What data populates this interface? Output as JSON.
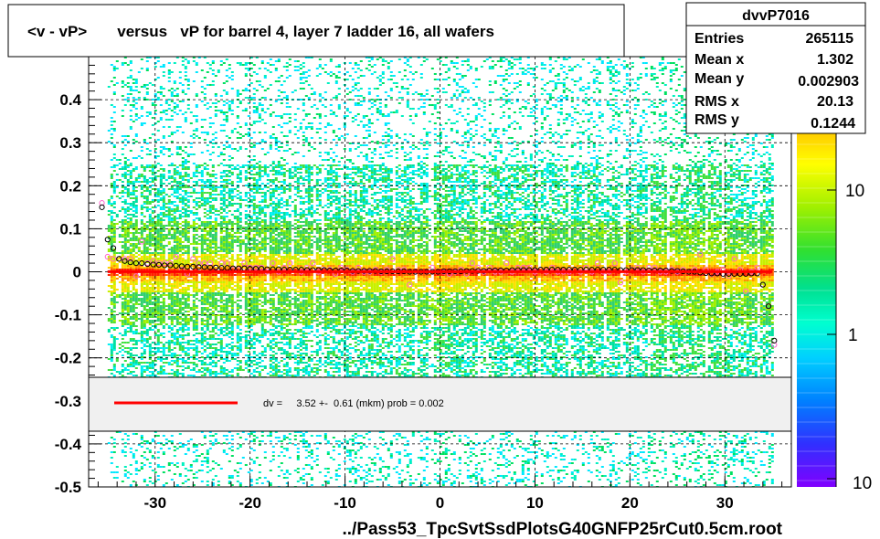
{
  "title": "<v - vP>       versus   vP for barrel 4, layer 7 ladder 16, all wafers",
  "footer": "../Pass53_TpcSvtSsdPlotsG40GNFP25rCut0.5cm.root",
  "stats": {
    "name": "dvvP7016",
    "rows": [
      {
        "label": "Entries",
        "value": "265115"
      },
      {
        "label": "Mean x",
        "value": "1.302"
      },
      {
        "label": "Mean y",
        "value": "0.002903"
      },
      {
        "label": "RMS x",
        "value": "20.13"
      },
      {
        "label": "RMS y",
        "value": "0.1244"
      }
    ]
  },
  "fit_legend": "dv =     3.52 +-  0.61 (mkm) prob = 0.002",
  "colors": {
    "fit_line": "#ff0000",
    "frame": "#000000",
    "legend_bg": "#f0f0f0",
    "profile_marker_light": "#ff66cc",
    "profile_marker_dark": "#000000"
  },
  "chart_data": {
    "type": "heatmap",
    "title": "<v - vP>       versus   vP for barrel 4, layer 7 ladder 16, all wafers",
    "xlabel": "../Pass53_TpcSvtSsdPlotsG40GNFP25rCut0.5cm.root",
    "ylabel": "",
    "xlim": [
      -37,
      37
    ],
    "ylim": [
      -0.5,
      0.5
    ],
    "x_ticks": [
      -30,
      -20,
      -10,
      0,
      10,
      20,
      30
    ],
    "y_ticks": [
      -0.5,
      -0.4,
      -0.3,
      -0.2,
      -0.1,
      0,
      0.1,
      0.2,
      0.3,
      0.4
    ],
    "y_tick_labels": [
      "-0.5",
      "-0.4",
      "-0.3",
      "-0.2",
      "-0.1",
      "0",
      "0.1",
      "0.2",
      "0.3",
      "0.4"
    ],
    "grid": true,
    "data_x_range": [
      -35,
      35
    ],
    "band_center_y": 0.0,
    "colorbar": {
      "scale": "log",
      "tick_labels": [
        "1",
        "10"
      ],
      "corner_label": "10"
    },
    "fit": {
      "type": "pol0",
      "value_mkm": 3.52,
      "error_mkm": 0.61,
      "prob": 0.002,
      "x_range": [
        -35,
        35
      ]
    },
    "profile": {
      "x": [
        -35.6,
        -35.0,
        -34.4,
        -33.8,
        -33.2,
        -32.6,
        -32.0,
        -31.4,
        -30.8,
        -30.2,
        -29.6,
        -29.0,
        -28.4,
        -27.8,
        -27.2,
        -26.6,
        -26.0,
        -25.4,
        -24.8,
        -24.2,
        -23.6,
        -23.0,
        -22.4,
        -21.8,
        -21.2,
        -20.6,
        -20.0,
        -19.4,
        -18.8,
        -18.2,
        -17.6,
        -17.0,
        -16.4,
        -15.8,
        -15.2,
        -14.6,
        -14.0,
        -13.4,
        -12.8,
        -12.2,
        -11.6,
        -11.0,
        -10.4,
        -9.8,
        -9.2,
        -8.6,
        -8.0,
        -7.4,
        -6.8,
        -6.2,
        -5.6,
        -5.0,
        -4.4,
        -3.8,
        -3.2,
        -2.6,
        -2.0,
        -1.4,
        -0.8,
        -0.2,
        0.4,
        1.0,
        1.6,
        2.2,
        2.8,
        3.4,
        4.0,
        4.6,
        5.2,
        5.8,
        6.4,
        7.0,
        7.6,
        8.2,
        8.8,
        9.4,
        10.0,
        10.6,
        11.2,
        11.8,
        12.4,
        13.0,
        13.6,
        14.2,
        14.8,
        15.4,
        16.0,
        16.6,
        17.2,
        17.8,
        18.4,
        19.0,
        19.6,
        20.2,
        20.8,
        21.4,
        22.0,
        22.6,
        23.2,
        23.8,
        24.4,
        25.0,
        25.6,
        26.2,
        26.8,
        27.4,
        28.0,
        28.6,
        29.2,
        29.8,
        30.4,
        31.0,
        31.6,
        32.2,
        32.8,
        33.4,
        34.0,
        34.6,
        35.2
      ],
      "y": [
        0.15,
        0.075,
        0.055,
        0.03,
        0.025,
        0.022,
        0.02,
        0.02,
        0.018,
        0.017,
        0.016,
        0.015,
        0.015,
        0.014,
        0.013,
        0.012,
        0.012,
        0.011,
        0.011,
        0.01,
        0.01,
        0.009,
        0.009,
        0.008,
        0.008,
        0.008,
        0.007,
        0.007,
        0.007,
        0.006,
        0.006,
        0.006,
        0.005,
        0.005,
        0.005,
        0.005,
        0.004,
        0.004,
        0.004,
        0.004,
        0.003,
        0.003,
        0.003,
        0.003,
        0.002,
        0.002,
        0.002,
        0.002,
        0.002,
        0.001,
        0.001,
        0.001,
        0.001,
        0.001,
        0.0,
        0.0,
        0.0,
        0.0,
        0.0,
        0.0,
        0.001,
        0.001,
        0.001,
        0.001,
        0.002,
        0.002,
        0.002,
        0.002,
        0.003,
        0.003,
        0.003,
        0.003,
        0.004,
        0.004,
        0.004,
        0.004,
        0.004,
        0.005,
        0.005,
        0.005,
        0.005,
        0.005,
        0.005,
        0.005,
        0.005,
        0.005,
        0.005,
        0.005,
        0.005,
        0.005,
        0.005,
        0.004,
        0.004,
        0.004,
        0.004,
        0.004,
        0.003,
        0.003,
        0.003,
        0.003,
        0.002,
        0.002,
        0.001,
        0.0,
        0.0,
        -0.002,
        -0.003,
        -0.004,
        -0.004,
        -0.005,
        -0.005,
        -0.005,
        -0.005,
        -0.005,
        -0.004,
        -0.004,
        -0.03,
        -0.08,
        -0.16
      ],
      "y_alt": [
        0.16,
        0.035,
        0.03,
        0.03,
        0.03,
        0.03,
        -0.01,
        0.07,
        0.02,
        0.025,
        0.02,
        0.02,
        0.02,
        0.035,
        0.005,
        -0.005,
        0.03,
        0.02,
        0.02,
        0.02,
        0.01,
        0.02,
        0.02,
        0.005,
        0.005,
        0.02,
        0.01,
        0.01,
        0.01,
        0.0,
        0.02,
        0.0,
        0.01,
        0.02,
        0.005,
        0.0,
        0.01,
        0.02,
        0.0,
        0.005,
        0.005,
        -0.005,
        0.01,
        0.005,
        0.0,
        0.01,
        0.0,
        0.0,
        0.005,
        0.0,
        0.005,
        0.03,
        0.005,
        0.005,
        -0.03,
        0.0,
        0.0,
        0.0,
        0.01,
        0.0,
        0.0,
        -0.005,
        0.0,
        0.005,
        -0.005,
        0.02,
        0.01,
        0.0,
        0.01,
        0.0,
        0.0,
        0.02,
        0.0,
        0.01,
        0.01,
        0.01,
        0.0,
        0.005,
        0.0,
        0.01,
        0.0,
        0.0,
        0.0,
        0.005,
        0.0,
        0.01,
        0.0,
        0.02,
        0.0,
        0.0,
        0.02,
        -0.025,
        0.0,
        0.005,
        0.01,
        0.0,
        0.01,
        0.01,
        0.0,
        0.0,
        0.005,
        0.0,
        0.005,
        0.0,
        0.005,
        0.04,
        0.005,
        -0.005,
        0.0,
        0.005,
        -0.01,
        0.03,
        0.005,
        -0.045,
        0.0,
        0.01,
        -0.03,
        -0.08,
        -0.17
      ]
    }
  }
}
